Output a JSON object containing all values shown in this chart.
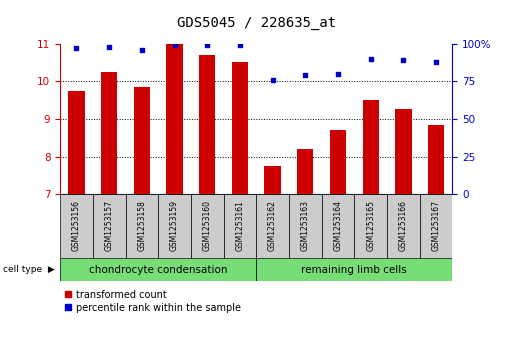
{
  "title": "GDS5045 / 228635_at",
  "samples": [
    "GSM1253156",
    "GSM1253157",
    "GSM1253158",
    "GSM1253159",
    "GSM1253160",
    "GSM1253161",
    "GSM1253162",
    "GSM1253163",
    "GSM1253164",
    "GSM1253165",
    "GSM1253166",
    "GSM1253167"
  ],
  "transformed_count": [
    9.75,
    10.25,
    9.85,
    11.0,
    10.7,
    10.5,
    7.75,
    8.2,
    8.7,
    9.5,
    9.25,
    8.85
  ],
  "percentile_rank": [
    97,
    98,
    96,
    99,
    99,
    99,
    76,
    79,
    80,
    90,
    89,
    88
  ],
  "ylim_left": [
    7,
    11
  ],
  "ylim_right": [
    0,
    100
  ],
  "yticks_left": [
    7,
    8,
    9,
    10,
    11
  ],
  "yticks_right": [
    0,
    25,
    50,
    75,
    100
  ],
  "bar_color": "#cc0000",
  "dot_color": "#0000cc",
  "cell_type_groups": [
    {
      "label": "chondrocyte condensation",
      "start": 0,
      "end": 5
    },
    {
      "label": "remaining limb cells",
      "start": 6,
      "end": 11
    }
  ],
  "cell_type_label": "cell type",
  "legend_items": [
    {
      "label": "transformed count",
      "color": "#cc0000"
    },
    {
      "label": "percentile rank within the sample",
      "color": "#0000cc"
    }
  ],
  "grid_color": "black",
  "bar_width": 0.5,
  "background_table": "#cccccc",
  "cell_type_color": "#77dd77",
  "title_fontsize": 10,
  "tick_fontsize": 7.5,
  "sample_fontsize": 5.5,
  "ct_fontsize": 7.5,
  "legend_fontsize": 7
}
